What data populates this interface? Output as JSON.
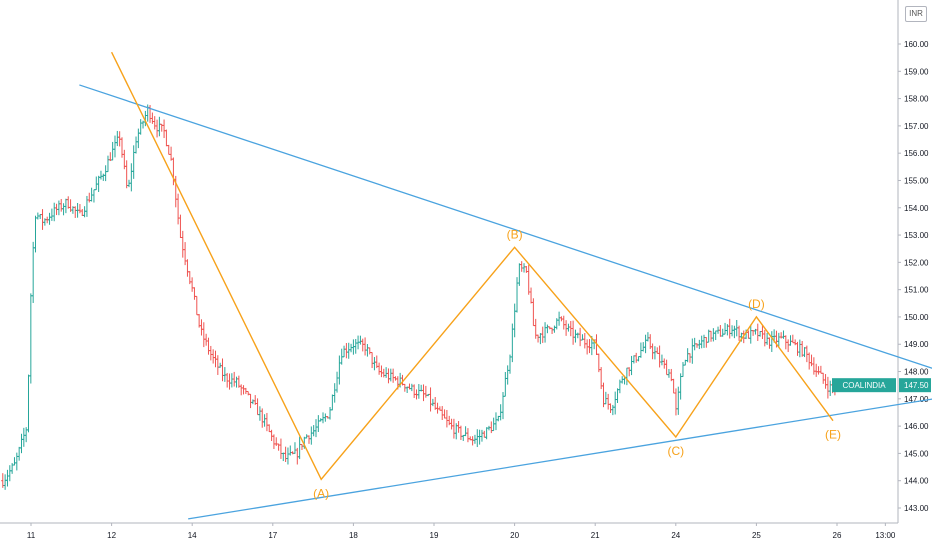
{
  "chart_data": {
    "type": "candlestick",
    "symbol": "COALINDIA",
    "last_price": "147.50",
    "currency_label": "INR",
    "ylim": [
      142.5,
      160.8
    ],
    "y_ticks": [
      "143.00",
      "144.00",
      "145.00",
      "146.00",
      "147.00",
      "148.00",
      "149.00",
      "150.00",
      "151.00",
      "152.00",
      "153.00",
      "154.00",
      "155.00",
      "156.00",
      "157.00",
      "158.00",
      "159.00",
      "160.00"
    ],
    "x_ticks": [
      {
        "label": "11",
        "t": 0
      },
      {
        "label": "12",
        "t": 1
      },
      {
        "label": "14",
        "t": 2
      },
      {
        "label": "17",
        "t": 3
      },
      {
        "label": "18",
        "t": 4
      },
      {
        "label": "19",
        "t": 5
      },
      {
        "label": "20",
        "t": 6
      },
      {
        "label": "21",
        "t": 7
      },
      {
        "label": "24",
        "t": 8
      },
      {
        "label": "25",
        "t": 9
      },
      {
        "label": "26",
        "t": 10
      },
      {
        "label": "13:00",
        "t": 10.6
      }
    ],
    "price_anchors": [
      [
        -0.35,
        144.0
      ],
      [
        -0.2,
        144.6
      ],
      [
        -0.05,
        146.0
      ],
      [
        0.0,
        151.0
      ],
      [
        0.05,
        153.8
      ],
      [
        0.15,
        153.5
      ],
      [
        0.3,
        153.9
      ],
      [
        0.45,
        154.2
      ],
      [
        0.6,
        153.7
      ],
      [
        0.75,
        154.5
      ],
      [
        0.9,
        155.3
      ],
      [
        1.0,
        156.0
      ],
      [
        1.1,
        156.6
      ],
      [
        1.2,
        154.5
      ],
      [
        1.3,
        156.5
      ],
      [
        1.45,
        157.6
      ],
      [
        1.55,
        157.0
      ],
      [
        1.65,
        156.8
      ],
      [
        1.75,
        155.6
      ],
      [
        1.85,
        153.0
      ],
      [
        2.0,
        151.0
      ],
      [
        2.1,
        149.5
      ],
      [
        2.25,
        148.5
      ],
      [
        2.4,
        147.8
      ],
      [
        2.55,
        147.6
      ],
      [
        2.7,
        147.0
      ],
      [
        2.85,
        146.4
      ],
      [
        3.0,
        145.5
      ],
      [
        3.15,
        144.8
      ],
      [
        3.3,
        145.0
      ],
      [
        3.4,
        145.6
      ],
      [
        3.5,
        145.8
      ],
      [
        3.7,
        146.5
      ],
      [
        3.85,
        148.7
      ],
      [
        4.0,
        149.0
      ],
      [
        4.15,
        148.9
      ],
      [
        4.3,
        148.0
      ],
      [
        4.45,
        147.8
      ],
      [
        4.6,
        147.6
      ],
      [
        4.75,
        147.3
      ],
      [
        4.9,
        147.1
      ],
      [
        5.05,
        146.5
      ],
      [
        5.2,
        146.0
      ],
      [
        5.35,
        145.7
      ],
      [
        5.5,
        145.5
      ],
      [
        5.65,
        145.8
      ],
      [
        5.8,
        146.2
      ],
      [
        5.95,
        148.8
      ],
      [
        6.05,
        151.8
      ],
      [
        6.15,
        151.6
      ],
      [
        6.25,
        149.3
      ],
      [
        6.4,
        149.5
      ],
      [
        6.55,
        149.9
      ],
      [
        6.7,
        149.4
      ],
      [
        6.85,
        149.1
      ],
      [
        7.0,
        149.0
      ],
      [
        7.1,
        147.0
      ],
      [
        7.2,
        146.7
      ],
      [
        7.35,
        147.9
      ],
      [
        7.5,
        148.5
      ],
      [
        7.65,
        149.1
      ],
      [
        7.8,
        148.4
      ],
      [
        7.95,
        147.8
      ],
      [
        8.0,
        146.5
      ],
      [
        8.1,
        148.5
      ],
      [
        8.25,
        148.9
      ],
      [
        8.4,
        149.3
      ],
      [
        8.55,
        149.4
      ],
      [
        8.7,
        149.6
      ],
      [
        8.85,
        149.3
      ],
      [
        9.0,
        149.4
      ],
      [
        9.15,
        149.1
      ],
      [
        9.3,
        149.2
      ],
      [
        9.45,
        149.0
      ],
      [
        9.6,
        148.7
      ],
      [
        9.75,
        148.0
      ],
      [
        9.9,
        147.4
      ],
      [
        10.0,
        147.5
      ]
    ],
    "waves": {
      "points": [
        {
          "t": 1.0,
          "y": 159.7
        },
        {
          "t": 3.6,
          "y": 144.05
        },
        {
          "t": 6.0,
          "y": 152.55
        },
        {
          "t": 8.0,
          "y": 145.6
        },
        {
          "t": 9.0,
          "y": 150.0
        },
        {
          "t": 9.95,
          "y": 146.2
        }
      ],
      "labels": [
        {
          "text": "(A)",
          "t": 3.6,
          "y": 144.05,
          "pos": "below"
        },
        {
          "text": "(B)",
          "t": 6.0,
          "y": 152.55,
          "pos": "above"
        },
        {
          "text": "(C)",
          "t": 8.0,
          "y": 145.6,
          "pos": "below"
        },
        {
          "text": "(D)",
          "t": 9.0,
          "y": 150.0,
          "pos": "above"
        },
        {
          "text": "(E)",
          "t": 9.95,
          "y": 146.2,
          "pos": "below"
        }
      ]
    },
    "trendlines": [
      {
        "name": "upper-trendline",
        "from": {
          "t": 0.6,
          "y": 158.5
        },
        "to": {
          "t": 11.2,
          "y": 148.1
        }
      },
      {
        "name": "lower-trendline",
        "from": {
          "t": 1.95,
          "y": 142.6
        },
        "to": {
          "t": 11.2,
          "y": 147.0
        }
      }
    ],
    "colors": {
      "up": "#26a69a",
      "down": "#ef5350",
      "wave": "#f7a21b",
      "trendline": "#4aa3df",
      "axis_text": "#131722",
      "price_label_bg": "#26a69a"
    }
  }
}
